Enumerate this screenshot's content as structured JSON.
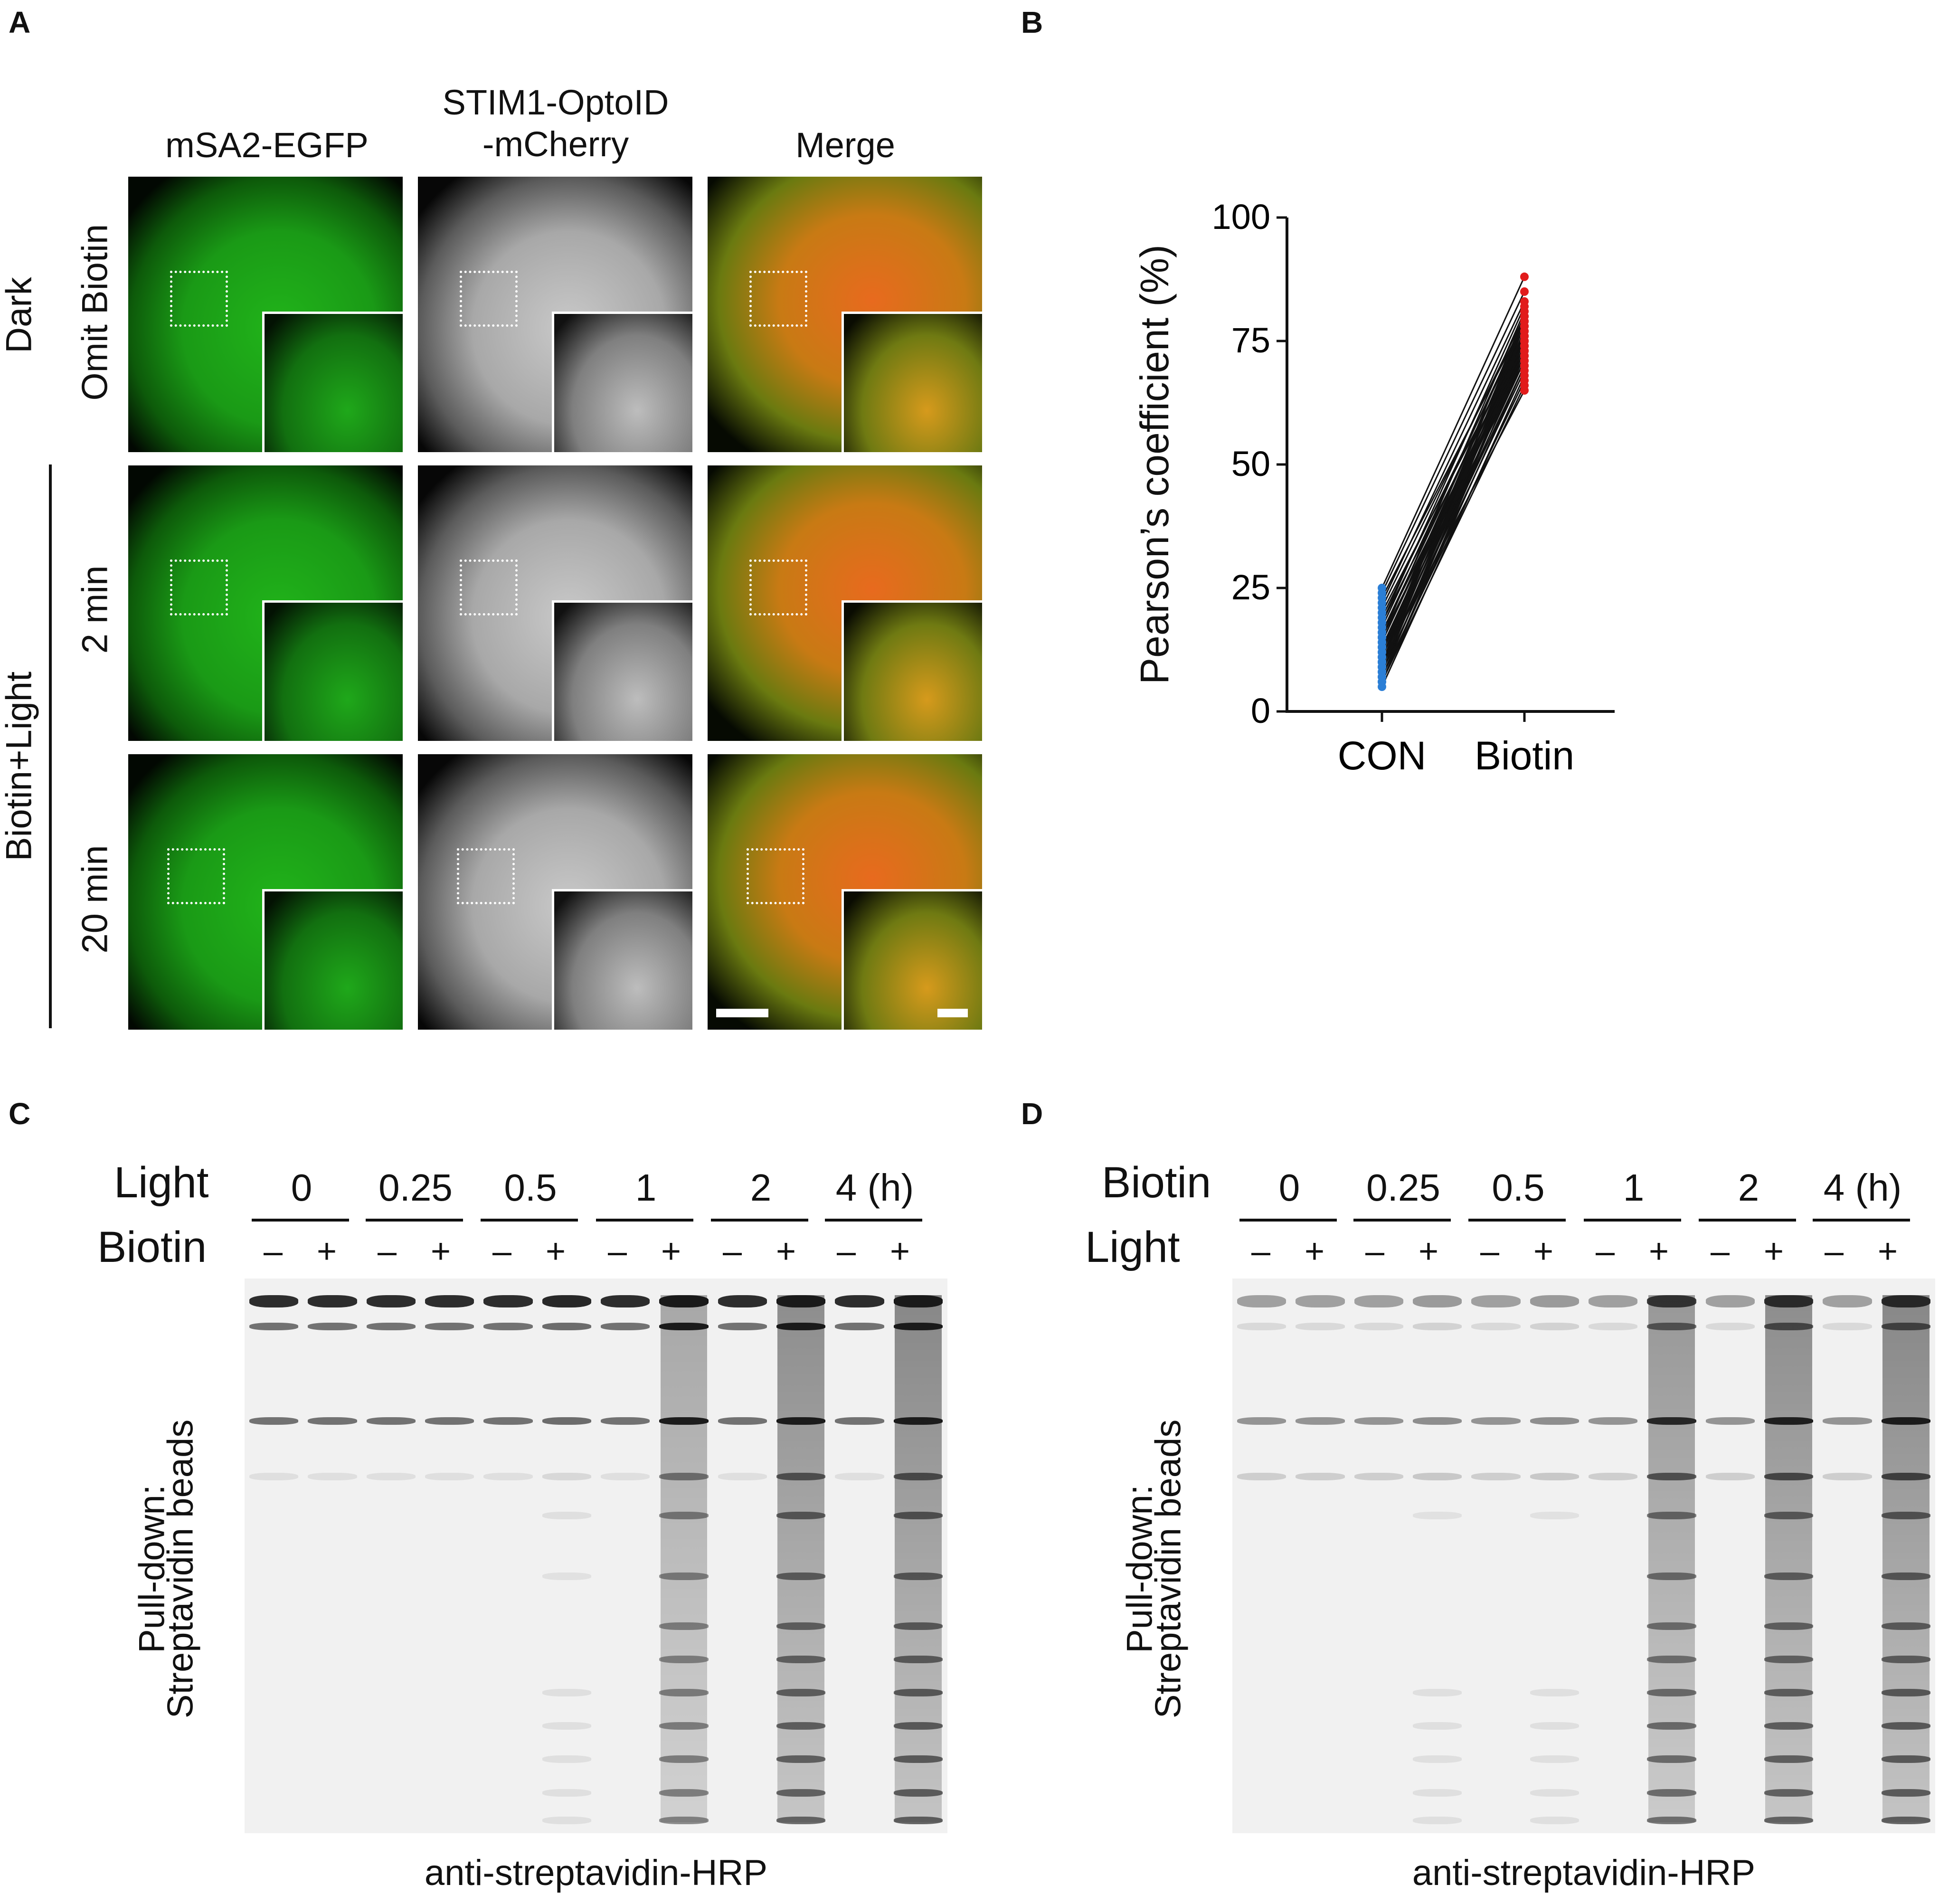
{
  "panels": {
    "a": "A",
    "b": "B",
    "c": "C",
    "d": "D"
  },
  "panel_a": {
    "col_headers": [
      "mSA2-EGFP",
      "STIM1-OptoID\n-mCherry",
      "Merge"
    ],
    "row_group_dark": "Dark",
    "row_omit": "Omit Biotin",
    "row_group_light": "Biotin+Light",
    "row_2min": "2 min",
    "row_20min": "20 min"
  },
  "chart_data": {
    "type": "line",
    "title": "",
    "xlabel": "",
    "ylabel": "Pearson’s coefficient (%)",
    "categories": [
      "CON",
      "Biotin"
    ],
    "ylim": [
      0,
      100
    ],
    "yticks": [
      0,
      25,
      50,
      75,
      100
    ],
    "colors": {
      "CON": "#2b7fd6",
      "Biotin": "#e11b1b",
      "line": "#111111"
    },
    "pairs": [
      [
        5,
        68
      ],
      [
        6,
        70
      ],
      [
        6,
        72
      ],
      [
        7,
        73
      ],
      [
        7,
        74
      ],
      [
        8,
        69
      ],
      [
        8,
        75
      ],
      [
        8,
        76
      ],
      [
        9,
        71
      ],
      [
        9,
        73
      ],
      [
        9,
        77
      ],
      [
        10,
        74
      ],
      [
        10,
        75
      ],
      [
        10,
        78
      ],
      [
        11,
        72
      ],
      [
        11,
        76
      ],
      [
        11,
        79
      ],
      [
        12,
        73
      ],
      [
        12,
        77
      ],
      [
        12,
        80
      ],
      [
        13,
        74
      ],
      [
        13,
        75
      ],
      [
        14,
        76
      ],
      [
        14,
        78
      ],
      [
        15,
        72
      ],
      [
        15,
        81
      ],
      [
        16,
        74
      ],
      [
        16,
        77
      ],
      [
        17,
        79
      ],
      [
        18,
        75
      ],
      [
        18,
        82
      ],
      [
        19,
        78
      ],
      [
        20,
        76
      ],
      [
        21,
        80
      ],
      [
        22,
        83
      ],
      [
        23,
        79
      ],
      [
        24,
        85
      ],
      [
        25,
        88
      ],
      [
        6,
        66
      ],
      [
        7,
        67
      ],
      [
        9,
        70
      ],
      [
        10,
        65
      ],
      [
        13,
        71
      ],
      [
        15,
        73
      ]
    ]
  },
  "panel_c": {
    "row1_label": "Light",
    "row2_label": "Biotin",
    "groups": [
      "0",
      "0.25",
      "0.5",
      "1",
      "2",
      "4 (h)"
    ],
    "signs": [
      "–",
      "+"
    ],
    "ylabel_line1": "Pull-down:",
    "ylabel_line2": "Streptavidin beads",
    "xlabel": "anti-streptavidin-HRP"
  },
  "panel_d": {
    "row1_label": "Biotin",
    "row2_label": "Light",
    "groups": [
      "0",
      "0.25",
      "0.5",
      "1",
      "2",
      "4 (h)"
    ],
    "signs": [
      "–",
      "+"
    ],
    "ylabel_line1": "Pull-down:",
    "ylabel_line2": "Streptavidin beads",
    "xlabel": "anti-streptavidin-HRP"
  }
}
